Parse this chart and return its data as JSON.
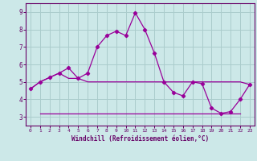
{
  "xlabel": "Windchill (Refroidissement éolien,°C)",
  "background_color": "#cce8e8",
  "grid_color": "#aacccc",
  "line_color": "#990099",
  "spine_color": "#660066",
  "tick_color": "#660066",
  "xlim": [
    -0.5,
    23.5
  ],
  "ylim": [
    2.5,
    9.5
  ],
  "yticks": [
    3,
    4,
    5,
    6,
    7,
    8,
    9
  ],
  "xticks": [
    0,
    1,
    2,
    3,
    4,
    5,
    6,
    7,
    8,
    9,
    10,
    11,
    12,
    13,
    14,
    15,
    16,
    17,
    18,
    19,
    20,
    21,
    22,
    23
  ],
  "line1_x": [
    0,
    1,
    2,
    3,
    4,
    5,
    6,
    7,
    8,
    9,
    10,
    11,
    12,
    13,
    14,
    15,
    16,
    17,
    18,
    19,
    20,
    21,
    22,
    23
  ],
  "line1_y": [
    4.6,
    5.0,
    5.25,
    5.5,
    5.8,
    5.2,
    5.5,
    7.0,
    7.65,
    7.9,
    7.65,
    8.95,
    8.0,
    6.65,
    5.0,
    4.4,
    4.2,
    5.0,
    4.9,
    3.5,
    3.2,
    3.3,
    4.0,
    4.85
  ],
  "line2_x": [
    0,
    1,
    2,
    3,
    4,
    5,
    6,
    7,
    8,
    9,
    10,
    11,
    12,
    13,
    14,
    15,
    16,
    17,
    18,
    19,
    20,
    21,
    22,
    23
  ],
  "line2_y": [
    4.6,
    5.0,
    5.25,
    5.5,
    5.2,
    5.2,
    5.0,
    5.0,
    5.0,
    5.0,
    5.0,
    5.0,
    5.0,
    5.0,
    5.0,
    5.0,
    5.0,
    5.0,
    5.0,
    5.0,
    5.0,
    5.0,
    5.0,
    4.85
  ],
  "line3_x": [
    1,
    14,
    22
  ],
  "line3_y": [
    3.2,
    3.2,
    3.2
  ],
  "line3_full_x": [
    1,
    2,
    3,
    4,
    5,
    6,
    7,
    8,
    9,
    10,
    11,
    12,
    13,
    14,
    15,
    16,
    17,
    18,
    19,
    20,
    21,
    22
  ],
  "line3_full_y": [
    3.2,
    3.2,
    3.2,
    3.2,
    3.2,
    3.2,
    3.2,
    3.2,
    3.2,
    3.2,
    3.2,
    3.2,
    3.2,
    3.2,
    3.2,
    3.2,
    3.2,
    3.2,
    3.2,
    3.2,
    3.2,
    3.2
  ]
}
